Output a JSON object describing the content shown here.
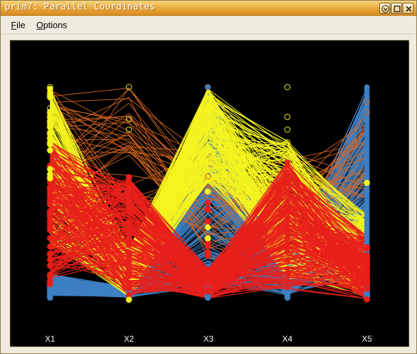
{
  "window": {
    "title": "prim7: Parallel Coordinates"
  },
  "menu": {
    "file_mnemonic": "F",
    "file_rest": "ile",
    "options_mnemonic": "O",
    "options_rest": "ptions"
  },
  "controls": {
    "minimize_icon": "chevron-down-icon",
    "maximize_icon": "maximize-icon",
    "close_icon": "close-icon"
  },
  "chart_data": {
    "type": "parallel-coordinates",
    "axes": [
      "X1",
      "X2",
      "X3",
      "X4",
      "X5"
    ],
    "colors": {
      "blue": "#3d7fc2",
      "yellow": "#f3f320",
      "red": "#e8201a",
      "orange": "#d8661f",
      "background": "#000000"
    },
    "grid": false,
    "legend": "none"
  }
}
